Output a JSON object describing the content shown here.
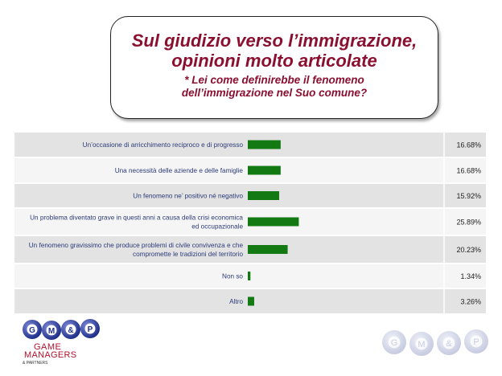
{
  "header": {
    "title_line1": "Sul giudizio verso l’immigrazione,",
    "title_line2": "opinioni molto articolate",
    "subtitle_line1": "* Lei come definirebbe il fenomeno",
    "subtitle_line2": "dell’immigrazione nel Suo comune?"
  },
  "chart_data": {
    "type": "bar",
    "orientation": "horizontal",
    "categories": [
      [
        "Un’occasione di arricchimento reciproco e di progresso"
      ],
      [
        "Una necessità delle aziende e delle famiglie"
      ],
      [
        "Un fenomeno ne’ positivo né negativo"
      ],
      [
        "Un problema diventato grave in questi anni a causa della crisi economica",
        "ed occupazionale"
      ],
      [
        "Un fenomeno gravissimo che produce problemi di civile convivenza e che",
        "compromette le tradizioni del territorio"
      ],
      [
        "Non so"
      ],
      [
        "Altro"
      ]
    ],
    "values": [
      16.68,
      16.68,
      15.92,
      25.89,
      20.23,
      1.34,
      3.26
    ],
    "value_labels": [
      "16.68%",
      "16.68%",
      "15.92%",
      "25.89%",
      "20.23%",
      "1.34%",
      "3.26%"
    ],
    "bar_color": "#137a13",
    "row_colors": [
      "#e3e3e3",
      "#f5f5f5"
    ]
  },
  "logo": {
    "balls": [
      "G",
      "M",
      "&",
      "P"
    ],
    "line1": "GAME",
    "line2": "MANAGERS",
    "line3": "& PARTNERS",
    "brand_color": "#b0122c"
  }
}
